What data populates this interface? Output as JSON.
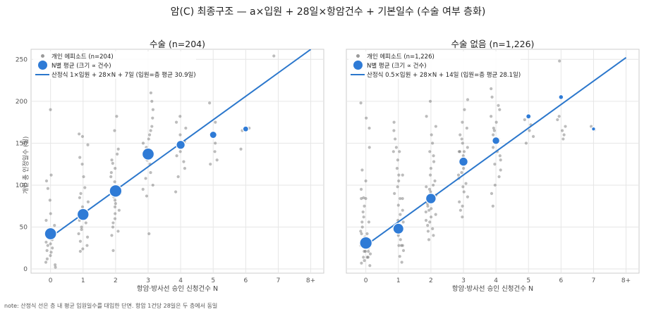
{
  "suptitle": "암(C) 최종구조 — a×입원 + 28일×항암건수 + 기본일수 (수술 여부 층화)",
  "note": "note: 산정식 선은 층 내 평균 입원일수를 대입한 단면. 항암 1건당 28일은 두 층에서 동일",
  "colors": {
    "line": "#2b77cc",
    "group_mean": "#2f7bd6",
    "individual": "#606060",
    "grid": "#e6e6e6"
  },
  "chart_data": [
    {
      "type": "scatter",
      "title": "수술 (n=204)",
      "xlabel": "항암·방사선 승인 신청건수 N",
      "ylabel": "개인 총 인정일수 (일)",
      "x_ticks": [
        "0",
        "1",
        "2",
        "3",
        "4",
        "5",
        "6",
        "7",
        "8+"
      ],
      "y_ticks": [
        0,
        50,
        100,
        150,
        200,
        250
      ],
      "xlim": [
        -0.6,
        8.4
      ],
      "ylim": [
        -5,
        262
      ],
      "grid": true,
      "legend_position": "top-left",
      "legend": [
        "개인 에피소드 (n=204)",
        "N별 평균 (크기 ∝ 건수)",
        "산정식 1×입원 + 28×N + 7일 (입원=층 평균 30.9일)"
      ],
      "individual_points": [
        {
          "x": 0,
          "y": 190
        },
        {
          "x": 0,
          "y": 112
        },
        {
          "x": 0,
          "y": 105
        },
        {
          "x": 0,
          "y": 96
        },
        {
          "x": 0,
          "y": 82
        },
        {
          "x": 0,
          "y": 66
        },
        {
          "x": 0,
          "y": 58
        },
        {
          "x": 0,
          "y": 52
        },
        {
          "x": 0,
          "y": 47
        },
        {
          "x": 0,
          "y": 44
        },
        {
          "x": 0,
          "y": 40
        },
        {
          "x": 0,
          "y": 38
        },
        {
          "x": 0,
          "y": 35
        },
        {
          "x": 0,
          "y": 32
        },
        {
          "x": 0,
          "y": 30
        },
        {
          "x": 0,
          "y": 28
        },
        {
          "x": 0,
          "y": 25
        },
        {
          "x": 0,
          "y": 22
        },
        {
          "x": 0,
          "y": 20
        },
        {
          "x": 0,
          "y": 16
        },
        {
          "x": 0,
          "y": 12
        },
        {
          "x": 0,
          "y": 8
        },
        {
          "x": 0,
          "y": 5
        },
        {
          "x": 0,
          "y": 2
        },
        {
          "x": 1,
          "y": 161
        },
        {
          "x": 1,
          "y": 158
        },
        {
          "x": 1,
          "y": 148
        },
        {
          "x": 1,
          "y": 133
        },
        {
          "x": 1,
          "y": 125
        },
        {
          "x": 1,
          "y": 110
        },
        {
          "x": 1,
          "y": 97
        },
        {
          "x": 1,
          "y": 90
        },
        {
          "x": 1,
          "y": 85
        },
        {
          "x": 1,
          "y": 80
        },
        {
          "x": 1,
          "y": 74
        },
        {
          "x": 1,
          "y": 70
        },
        {
          "x": 1,
          "y": 66
        },
        {
          "x": 1,
          "y": 62
        },
        {
          "x": 1,
          "y": 58
        },
        {
          "x": 1,
          "y": 55
        },
        {
          "x": 1,
          "y": 50
        },
        {
          "x": 1,
          "y": 47
        },
        {
          "x": 1,
          "y": 42
        },
        {
          "x": 1,
          "y": 38
        },
        {
          "x": 1,
          "y": 33
        },
        {
          "x": 1,
          "y": 28
        },
        {
          "x": 1,
          "y": 24
        },
        {
          "x": 1,
          "y": 21
        },
        {
          "x": 2,
          "y": 182
        },
        {
          "x": 2,
          "y": 165
        },
        {
          "x": 2,
          "y": 143
        },
        {
          "x": 2,
          "y": 137
        },
        {
          "x": 2,
          "y": 130
        },
        {
          "x": 2,
          "y": 126
        },
        {
          "x": 2,
          "y": 120
        },
        {
          "x": 2,
          "y": 115
        },
        {
          "x": 2,
          "y": 110
        },
        {
          "x": 2,
          "y": 104
        },
        {
          "x": 2,
          "y": 99
        },
        {
          "x": 2,
          "y": 95
        },
        {
          "x": 2,
          "y": 90
        },
        {
          "x": 2,
          "y": 86
        },
        {
          "x": 2,
          "y": 82
        },
        {
          "x": 2,
          "y": 78
        },
        {
          "x": 2,
          "y": 74
        },
        {
          "x": 2,
          "y": 70
        },
        {
          "x": 2,
          "y": 66
        },
        {
          "x": 2,
          "y": 60
        },
        {
          "x": 2,
          "y": 55
        },
        {
          "x": 2,
          "y": 50
        },
        {
          "x": 2,
          "y": 45
        },
        {
          "x": 2,
          "y": 40
        },
        {
          "x": 2,
          "y": 22
        },
        {
          "x": 3,
          "y": 210
        },
        {
          "x": 3,
          "y": 200
        },
        {
          "x": 3,
          "y": 190
        },
        {
          "x": 3,
          "y": 180
        },
        {
          "x": 3,
          "y": 170
        },
        {
          "x": 3,
          "y": 165
        },
        {
          "x": 3,
          "y": 160
        },
        {
          "x": 3,
          "y": 155
        },
        {
          "x": 3,
          "y": 150
        },
        {
          "x": 3,
          "y": 145
        },
        {
          "x": 3,
          "y": 140
        },
        {
          "x": 3,
          "y": 135
        },
        {
          "x": 3,
          "y": 130
        },
        {
          "x": 3,
          "y": 125
        },
        {
          "x": 3,
          "y": 115
        },
        {
          "x": 3,
          "y": 108
        },
        {
          "x": 3,
          "y": 100
        },
        {
          "x": 3,
          "y": 95
        },
        {
          "x": 3,
          "y": 87
        },
        {
          "x": 3,
          "y": 42
        },
        {
          "x": 4,
          "y": 182
        },
        {
          "x": 4,
          "y": 175
        },
        {
          "x": 4,
          "y": 168
        },
        {
          "x": 4,
          "y": 160
        },
        {
          "x": 4,
          "y": 152
        },
        {
          "x": 4,
          "y": 145
        },
        {
          "x": 4,
          "y": 140
        },
        {
          "x": 4,
          "y": 135
        },
        {
          "x": 4,
          "y": 128
        },
        {
          "x": 4,
          "y": 120
        },
        {
          "x": 4,
          "y": 110
        },
        {
          "x": 4,
          "y": 92
        },
        {
          "x": 5,
          "y": 198
        },
        {
          "x": 5,
          "y": 175
        },
        {
          "x": 5,
          "y": 150
        },
        {
          "x": 5,
          "y": 140
        },
        {
          "x": 5,
          "y": 130
        },
        {
          "x": 5,
          "y": 125
        },
        {
          "x": 6,
          "y": 168
        },
        {
          "x": 6,
          "y": 165
        },
        {
          "x": 6,
          "y": 143
        },
        {
          "x": 7,
          "y": 254
        }
      ],
      "group_means": [
        {
          "x": 0,
          "y": 42,
          "n": 40
        },
        {
          "x": 1,
          "y": 65,
          "n": 38
        },
        {
          "x": 2,
          "y": 93,
          "n": 44
        },
        {
          "x": 3,
          "y": 137,
          "n": 40
        },
        {
          "x": 4,
          "y": 148,
          "n": 16
        },
        {
          "x": 5,
          "y": 160,
          "n": 8
        },
        {
          "x": 6,
          "y": 167,
          "n": 3
        }
      ],
      "formula_line": {
        "x": [
          0,
          8
        ],
        "y": [
          37.9,
          261.9
        ]
      }
    },
    {
      "type": "scatter",
      "title": "수술 없음 (n=1,226)",
      "xlabel": "항암·방사선 승인 신청건수 N",
      "ylabel": "",
      "x_ticks": [
        "0",
        "1",
        "2",
        "3",
        "4",
        "5",
        "6",
        "7",
        "8+"
      ],
      "y_ticks": [
        0,
        50,
        100,
        150,
        200,
        250
      ],
      "xlim": [
        -0.6,
        8.4
      ],
      "ylim": [
        -5,
        262
      ],
      "grid": true,
      "legend_position": "top-left",
      "legend": [
        "개인 에피소드 (n=1,226)",
        "N별 평균 (크기 ∝ 건수)",
        "산정식 0.5×입원 + 28×N + 14일 (입원=층 평균 28.1일)"
      ],
      "individual_points": [
        {
          "x": 0,
          "y": 198
        },
        {
          "x": 0,
          "y": 180
        },
        {
          "x": 0,
          "y": 168
        },
        {
          "x": 0,
          "y": 145
        },
        {
          "x": 0,
          "y": 118
        },
        {
          "x": 0,
          "y": 105
        },
        {
          "x": 0,
          "y": 95
        },
        {
          "x": 0,
          "y": 85
        },
        {
          "x": 0,
          "y": 84
        },
        {
          "x": 0,
          "y": 84
        },
        {
          "x": 0,
          "y": 75
        },
        {
          "x": 0,
          "y": 68
        },
        {
          "x": 0,
          "y": 62
        },
        {
          "x": 0,
          "y": 56
        },
        {
          "x": 0,
          "y": 56
        },
        {
          "x": 0,
          "y": 50
        },
        {
          "x": 0,
          "y": 45
        },
        {
          "x": 0,
          "y": 42
        },
        {
          "x": 0,
          "y": 42
        },
        {
          "x": 0,
          "y": 38
        },
        {
          "x": 0,
          "y": 35
        },
        {
          "x": 0,
          "y": 30
        },
        {
          "x": 0,
          "y": 28
        },
        {
          "x": 0,
          "y": 28
        },
        {
          "x": 0,
          "y": 25
        },
        {
          "x": 0,
          "y": 21
        },
        {
          "x": 0,
          "y": 21
        },
        {
          "x": 0,
          "y": 21
        },
        {
          "x": 0,
          "y": 18
        },
        {
          "x": 0,
          "y": 14
        },
        {
          "x": 0,
          "y": 14
        },
        {
          "x": 0,
          "y": 14
        },
        {
          "x": 0,
          "y": 10
        },
        {
          "x": 0,
          "y": 7
        },
        {
          "x": 0,
          "y": 4
        },
        {
          "x": 1,
          "y": 175
        },
        {
          "x": 1,
          "y": 165
        },
        {
          "x": 1,
          "y": 155
        },
        {
          "x": 1,
          "y": 145
        },
        {
          "x": 1,
          "y": 140
        },
        {
          "x": 1,
          "y": 140
        },
        {
          "x": 1,
          "y": 130
        },
        {
          "x": 1,
          "y": 120
        },
        {
          "x": 1,
          "y": 112
        },
        {
          "x": 1,
          "y": 112
        },
        {
          "x": 1,
          "y": 105
        },
        {
          "x": 1,
          "y": 98
        },
        {
          "x": 1,
          "y": 90
        },
        {
          "x": 1,
          "y": 84
        },
        {
          "x": 1,
          "y": 84
        },
        {
          "x": 1,
          "y": 76
        },
        {
          "x": 1,
          "y": 70
        },
        {
          "x": 1,
          "y": 65
        },
        {
          "x": 1,
          "y": 58
        },
        {
          "x": 1,
          "y": 56
        },
        {
          "x": 1,
          "y": 50
        },
        {
          "x": 1,
          "y": 45
        },
        {
          "x": 1,
          "y": 40
        },
        {
          "x": 1,
          "y": 35
        },
        {
          "x": 1,
          "y": 28
        },
        {
          "x": 1,
          "y": 28
        },
        {
          "x": 1,
          "y": 28
        },
        {
          "x": 1,
          "y": 22
        },
        {
          "x": 1,
          "y": 15
        },
        {
          "x": 1,
          "y": 8
        },
        {
          "x": 2,
          "y": 200
        },
        {
          "x": 2,
          "y": 182
        },
        {
          "x": 2,
          "y": 170
        },
        {
          "x": 2,
          "y": 160
        },
        {
          "x": 2,
          "y": 150
        },
        {
          "x": 2,
          "y": 140
        },
        {
          "x": 2,
          "y": 135
        },
        {
          "x": 2,
          "y": 128
        },
        {
          "x": 2,
          "y": 120
        },
        {
          "x": 2,
          "y": 112
        },
        {
          "x": 2,
          "y": 105
        },
        {
          "x": 2,
          "y": 100
        },
        {
          "x": 2,
          "y": 98
        },
        {
          "x": 2,
          "y": 95
        },
        {
          "x": 2,
          "y": 92
        },
        {
          "x": 2,
          "y": 88
        },
        {
          "x": 2,
          "y": 85
        },
        {
          "x": 2,
          "y": 84
        },
        {
          "x": 2,
          "y": 82
        },
        {
          "x": 2,
          "y": 78
        },
        {
          "x": 2,
          "y": 75
        },
        {
          "x": 2,
          "y": 72
        },
        {
          "x": 2,
          "y": 70
        },
        {
          "x": 2,
          "y": 68
        },
        {
          "x": 2,
          "y": 65
        },
        {
          "x": 2,
          "y": 62
        },
        {
          "x": 2,
          "y": 58
        },
        {
          "x": 2,
          "y": 56
        },
        {
          "x": 2,
          "y": 52
        },
        {
          "x": 2,
          "y": 48
        },
        {
          "x": 2,
          "y": 45
        },
        {
          "x": 2,
          "y": 40
        },
        {
          "x": 2,
          "y": 35
        },
        {
          "x": 3,
          "y": 202
        },
        {
          "x": 3,
          "y": 190
        },
        {
          "x": 3,
          "y": 175
        },
        {
          "x": 3,
          "y": 168
        },
        {
          "x": 3,
          "y": 160
        },
        {
          "x": 3,
          "y": 155
        },
        {
          "x": 3,
          "y": 150
        },
        {
          "x": 3,
          "y": 145
        },
        {
          "x": 3,
          "y": 140
        },
        {
          "x": 3,
          "y": 140
        },
        {
          "x": 3,
          "y": 140
        },
        {
          "x": 3,
          "y": 135
        },
        {
          "x": 3,
          "y": 130
        },
        {
          "x": 3,
          "y": 125
        },
        {
          "x": 3,
          "y": 120
        },
        {
          "x": 3,
          "y": 115
        },
        {
          "x": 3,
          "y": 112
        },
        {
          "x": 3,
          "y": 108
        },
        {
          "x": 3,
          "y": 102
        },
        {
          "x": 3,
          "y": 98
        },
        {
          "x": 3,
          "y": 92
        },
        {
          "x": 3,
          "y": 86
        },
        {
          "x": 3,
          "y": 80
        },
        {
          "x": 3,
          "y": 75
        },
        {
          "x": 3,
          "y": 70
        },
        {
          "x": 3,
          "y": 62
        },
        {
          "x": 4,
          "y": 215
        },
        {
          "x": 4,
          "y": 205
        },
        {
          "x": 4,
          "y": 195
        },
        {
          "x": 4,
          "y": 190
        },
        {
          "x": 4,
          "y": 182
        },
        {
          "x": 4,
          "y": 175
        },
        {
          "x": 4,
          "y": 168
        },
        {
          "x": 4,
          "y": 165
        },
        {
          "x": 4,
          "y": 160
        },
        {
          "x": 4,
          "y": 155
        },
        {
          "x": 4,
          "y": 150
        },
        {
          "x": 4,
          "y": 145
        },
        {
          "x": 4,
          "y": 140
        },
        {
          "x": 4,
          "y": 135
        },
        {
          "x": 4,
          "y": 130
        },
        {
          "x": 4,
          "y": 125
        },
        {
          "x": 4,
          "y": 118
        },
        {
          "x": 4,
          "y": 110
        },
        {
          "x": 4,
          "y": 100
        },
        {
          "x": 4,
          "y": 90
        },
        {
          "x": 4,
          "y": 75
        },
        {
          "x": 5,
          "y": 178
        },
        {
          "x": 5,
          "y": 172
        },
        {
          "x": 5,
          "y": 165
        },
        {
          "x": 5,
          "y": 158
        },
        {
          "x": 5,
          "y": 150
        },
        {
          "x": 6,
          "y": 248
        },
        {
          "x": 6,
          "y": 182
        },
        {
          "x": 6,
          "y": 178
        },
        {
          "x": 6,
          "y": 170
        },
        {
          "x": 6,
          "y": 165
        },
        {
          "x": 6,
          "y": 160
        },
        {
          "x": 6,
          "y": 155
        },
        {
          "x": 7,
          "y": 170
        },
        {
          "x": 7,
          "y": 166
        }
      ],
      "group_means": [
        {
          "x": 0,
          "y": 31,
          "n": 420
        },
        {
          "x": 1,
          "y": 48,
          "n": 280
        },
        {
          "x": 2,
          "y": 84,
          "n": 250
        },
        {
          "x": 3,
          "y": 128,
          "n": 160
        },
        {
          "x": 4,
          "y": 153,
          "n": 90
        },
        {
          "x": 5,
          "y": 182,
          "n": 14
        },
        {
          "x": 6,
          "y": 205,
          "n": 10
        },
        {
          "x": 7,
          "y": 167,
          "n": 2
        }
      ],
      "formula_line": {
        "x": [
          0,
          8
        ],
        "y": [
          28.1,
          252.1
        ]
      }
    }
  ]
}
